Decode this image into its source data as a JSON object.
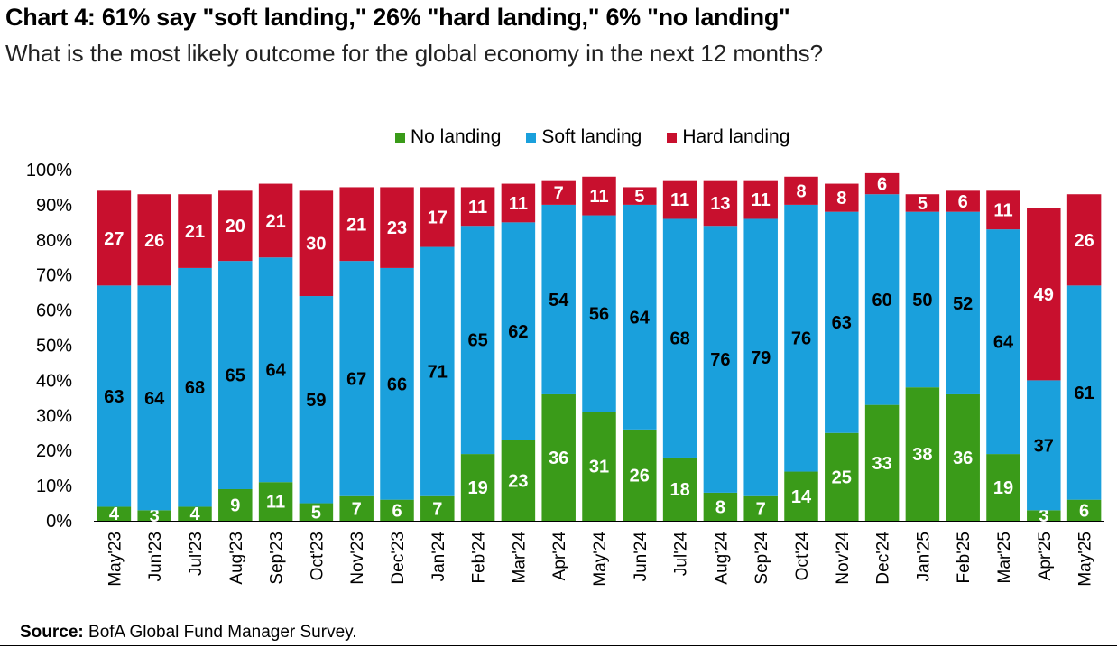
{
  "title": "Chart 4: 61% say \"soft landing,\" 26% \"hard landing,\" 6% \"no landing\"",
  "subtitle": "What is the most likely outcome for the global economy in the next 12 months?",
  "source_label": "Source:",
  "source_text": "BofA Global Fund Manager Survey.",
  "colors": {
    "no_landing": "#3a9b19",
    "soft_landing": "#1aa0dc",
    "hard_landing": "#c8102e"
  },
  "chart_data": {
    "type": "bar",
    "stacked": true,
    "percent_stacked": true,
    "categories": [
      "May'23",
      "Jun'23",
      "Jul'23",
      "Aug'23",
      "Sep'23",
      "Oct'23",
      "Nov'23",
      "Dec'23",
      "Jan'24",
      "Feb'24",
      "Mar'24",
      "Apr'24",
      "May'24",
      "Jun'24",
      "Jul'24",
      "Aug'24",
      "Sep'24",
      "Oct'24",
      "Nov'24",
      "Dec'24",
      "Jan'25",
      "Feb'25",
      "Mar'25",
      "Apr'25",
      "May'25"
    ],
    "series": [
      {
        "name": "No landing",
        "values": [
          4,
          3,
          4,
          9,
          11,
          5,
          7,
          6,
          7,
          19,
          23,
          36,
          31,
          26,
          18,
          8,
          7,
          14,
          25,
          33,
          38,
          36,
          19,
          3,
          6
        ]
      },
      {
        "name": "Soft landing",
        "values": [
          63,
          64,
          68,
          65,
          64,
          59,
          67,
          66,
          71,
          65,
          62,
          54,
          56,
          64,
          68,
          76,
          79,
          76,
          63,
          60,
          50,
          52,
          64,
          37,
          61
        ]
      },
      {
        "name": "Hard landing",
        "values": [
          27,
          26,
          21,
          20,
          21,
          30,
          21,
          23,
          17,
          11,
          11,
          7,
          11,
          5,
          11,
          13,
          11,
          8,
          8,
          6,
          5,
          6,
          11,
          49,
          26
        ]
      }
    ],
    "y_ticks": [
      "0%",
      "10%",
      "20%",
      "30%",
      "40%",
      "50%",
      "60%",
      "70%",
      "80%",
      "90%",
      "100%"
    ],
    "ylim": [
      0,
      100
    ],
    "legend_position": "top-center",
    "grid": false
  }
}
